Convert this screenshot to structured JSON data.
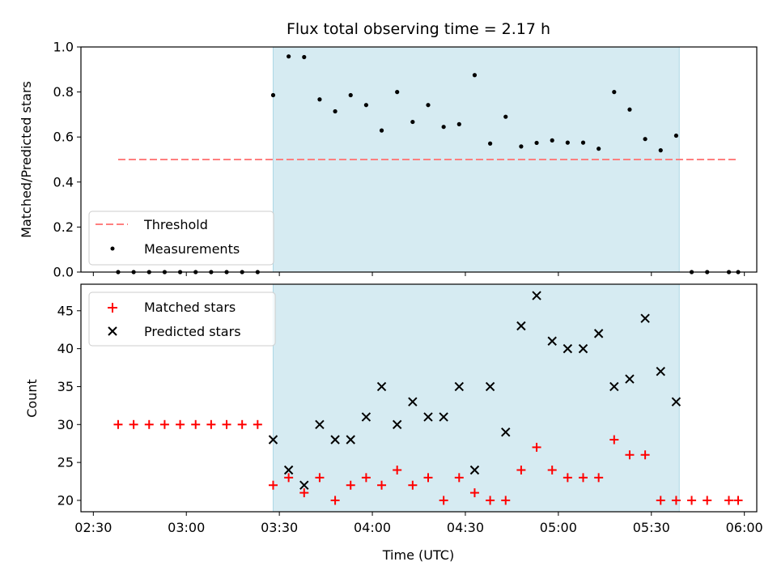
{
  "chart_data": [
    {
      "type": "scatter",
      "title": "Flux total observing time = 2.17 h",
      "xlabel": "",
      "ylabel": "Matched/Predicted stars",
      "xlim": [
        "02:26",
        "06:04"
      ],
      "ylim": [
        0,
        1.0
      ],
      "grid": false,
      "legend_position": "lower-left",
      "shaded_interval": {
        "start": "03:28",
        "end": "05:39",
        "color": "#add8e6"
      },
      "threshold": {
        "name": "Threshold",
        "value": 0.5,
        "x_start": "02:38",
        "x_end": "05:58",
        "color": "#ff7f7f"
      },
      "series": [
        {
          "name": "Measurements",
          "color": "#000000",
          "x": [
            "02:38",
            "02:43",
            "02:48",
            "02:53",
            "02:58",
            "03:03",
            "03:08",
            "03:13",
            "03:18",
            "03:23",
            "03:28",
            "03:33",
            "03:38",
            "03:43",
            "03:48",
            "03:53",
            "03:58",
            "04:03",
            "04:08",
            "04:13",
            "04:18",
            "04:23",
            "04:28",
            "04:33",
            "04:38",
            "04:43",
            "04:48",
            "04:53",
            "04:58",
            "05:03",
            "05:08",
            "05:13",
            "05:18",
            "05:23",
            "05:28",
            "05:33",
            "05:38",
            "05:43",
            "05:48",
            "05:55",
            "05:58"
          ],
          "y": [
            0,
            0,
            0,
            0,
            0,
            0,
            0,
            0,
            0,
            0,
            0.786,
            0.958,
            0.955,
            0.767,
            0.714,
            0.786,
            0.742,
            0.629,
            0.8,
            0.667,
            0.742,
            0.645,
            0.657,
            0.875,
            0.571,
            0.69,
            0.558,
            0.574,
            0.585,
            0.575,
            0.575,
            0.548,
            0.8,
            0.722,
            0.591,
            0.541,
            0.606,
            0,
            0,
            0,
            0
          ]
        }
      ],
      "yticks": [
        "0.0",
        "0.2",
        "0.4",
        "0.6",
        "0.8",
        "1.0"
      ]
    },
    {
      "type": "scatter",
      "xlabel": "Time (UTC)",
      "ylabel": "Count",
      "xlim": [
        "02:26",
        "06:04"
      ],
      "ylim": [
        18.5,
        48.5
      ],
      "grid": false,
      "legend_position": "upper-left",
      "shaded_interval": {
        "start": "03:28",
        "end": "05:39",
        "color": "#add8e6"
      },
      "series": [
        {
          "name": "Matched stars",
          "marker": "plus",
          "color": "#ff0000",
          "x": [
            "02:38",
            "02:43",
            "02:48",
            "02:53",
            "02:58",
            "03:03",
            "03:08",
            "03:13",
            "03:18",
            "03:23",
            "03:28",
            "03:33",
            "03:38",
            "03:43",
            "03:48",
            "03:53",
            "03:58",
            "04:03",
            "04:08",
            "04:13",
            "04:18",
            "04:23",
            "04:28",
            "04:33",
            "04:38",
            "04:43",
            "04:48",
            "04:53",
            "04:58",
            "05:03",
            "05:08",
            "05:13",
            "05:18",
            "05:23",
            "05:28",
            "05:33",
            "05:38",
            "05:43",
            "05:48",
            "05:55",
            "05:58"
          ],
          "y": [
            30,
            30,
            30,
            30,
            30,
            30,
            30,
            30,
            30,
            30,
            22,
            23,
            21,
            23,
            20,
            22,
            23,
            22,
            24,
            22,
            23,
            20,
            23,
            21,
            20,
            20,
            24,
            27,
            24,
            23,
            23,
            23,
            28,
            26,
            26,
            20,
            20,
            20,
            20,
            20,
            20
          ]
        },
        {
          "name": "Predicted stars",
          "marker": "x",
          "color": "#000000",
          "x": [
            "03:28",
            "03:33",
            "03:38",
            "03:43",
            "03:48",
            "03:53",
            "03:58",
            "04:03",
            "04:08",
            "04:13",
            "04:18",
            "04:23",
            "04:28",
            "04:33",
            "04:38",
            "04:43",
            "04:48",
            "04:53",
            "04:58",
            "05:03",
            "05:08",
            "05:13",
            "05:18",
            "05:23",
            "05:28",
            "05:33",
            "05:38"
          ],
          "y": [
            28,
            24,
            22,
            30,
            28,
            28,
            31,
            35,
            30,
            33,
            31,
            31,
            35,
            24,
            35,
            29,
            43,
            47,
            41,
            40,
            40,
            42,
            35,
            36,
            44,
            37,
            33
          ]
        }
      ],
      "yticks": [
        "20",
        "25",
        "30",
        "35",
        "40",
        "45"
      ],
      "xticks": [
        "02:30",
        "03:00",
        "03:30",
        "04:00",
        "04:30",
        "05:00",
        "05:30",
        "06:00"
      ]
    }
  ]
}
